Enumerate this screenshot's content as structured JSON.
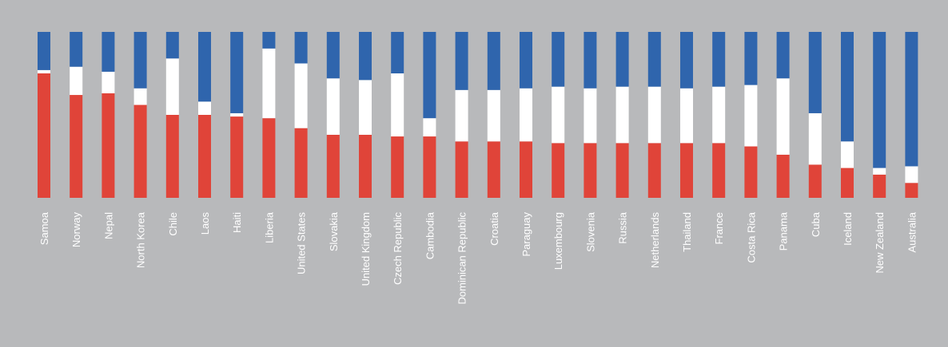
{
  "chart_data": {
    "type": "bar",
    "stacked": true,
    "normalized": true,
    "title": "",
    "xlabel": "",
    "ylabel": "",
    "ylim": [
      0,
      100
    ],
    "grid": false,
    "legend": "none",
    "colors": {
      "red": "#e04439",
      "white": "#ffffff",
      "blue": "#2f65ad"
    },
    "categories": [
      "Samoa",
      "Norway",
      "Nepal",
      "North Korea",
      "Chile",
      "Laos",
      "Haiti",
      "Liberia",
      "United States",
      "Slovakia",
      "United Kingdom",
      "Czech Republic",
      "Cambodia",
      "Dominican Republic",
      "Croatia",
      "Paraguay",
      "Luxembourg",
      "Slovenia",
      "Russia",
      "Netherlands",
      "Thailand",
      "France",
      "Costa Rica",
      "Panama",
      "Cuba",
      "Iceland",
      "New Zealand",
      "Australia"
    ],
    "series": [
      {
        "color": "red",
        "values": [
          75,
          62,
          63,
          56,
          50,
          50,
          49,
          48,
          42,
          38,
          38,
          37,
          37,
          34,
          34,
          34,
          33,
          33,
          33,
          33,
          33,
          33,
          31,
          26,
          20,
          18,
          14,
          9
        ]
      },
      {
        "color": "white",
        "values": [
          2,
          17,
          13,
          10,
          34,
          8,
          2,
          42,
          39,
          34,
          33,
          38,
          11,
          31,
          31,
          32,
          34,
          33,
          34,
          34,
          33,
          34,
          37,
          46,
          31,
          16,
          4,
          10
        ]
      },
      {
        "color": "blue",
        "values": [
          23,
          21,
          24,
          34,
          16,
          42,
          49,
          10,
          19,
          28,
          29,
          25,
          52,
          35,
          35,
          34,
          33,
          34,
          33,
          33,
          34,
          33,
          32,
          28,
          49,
          66,
          82,
          81
        ]
      }
    ]
  }
}
